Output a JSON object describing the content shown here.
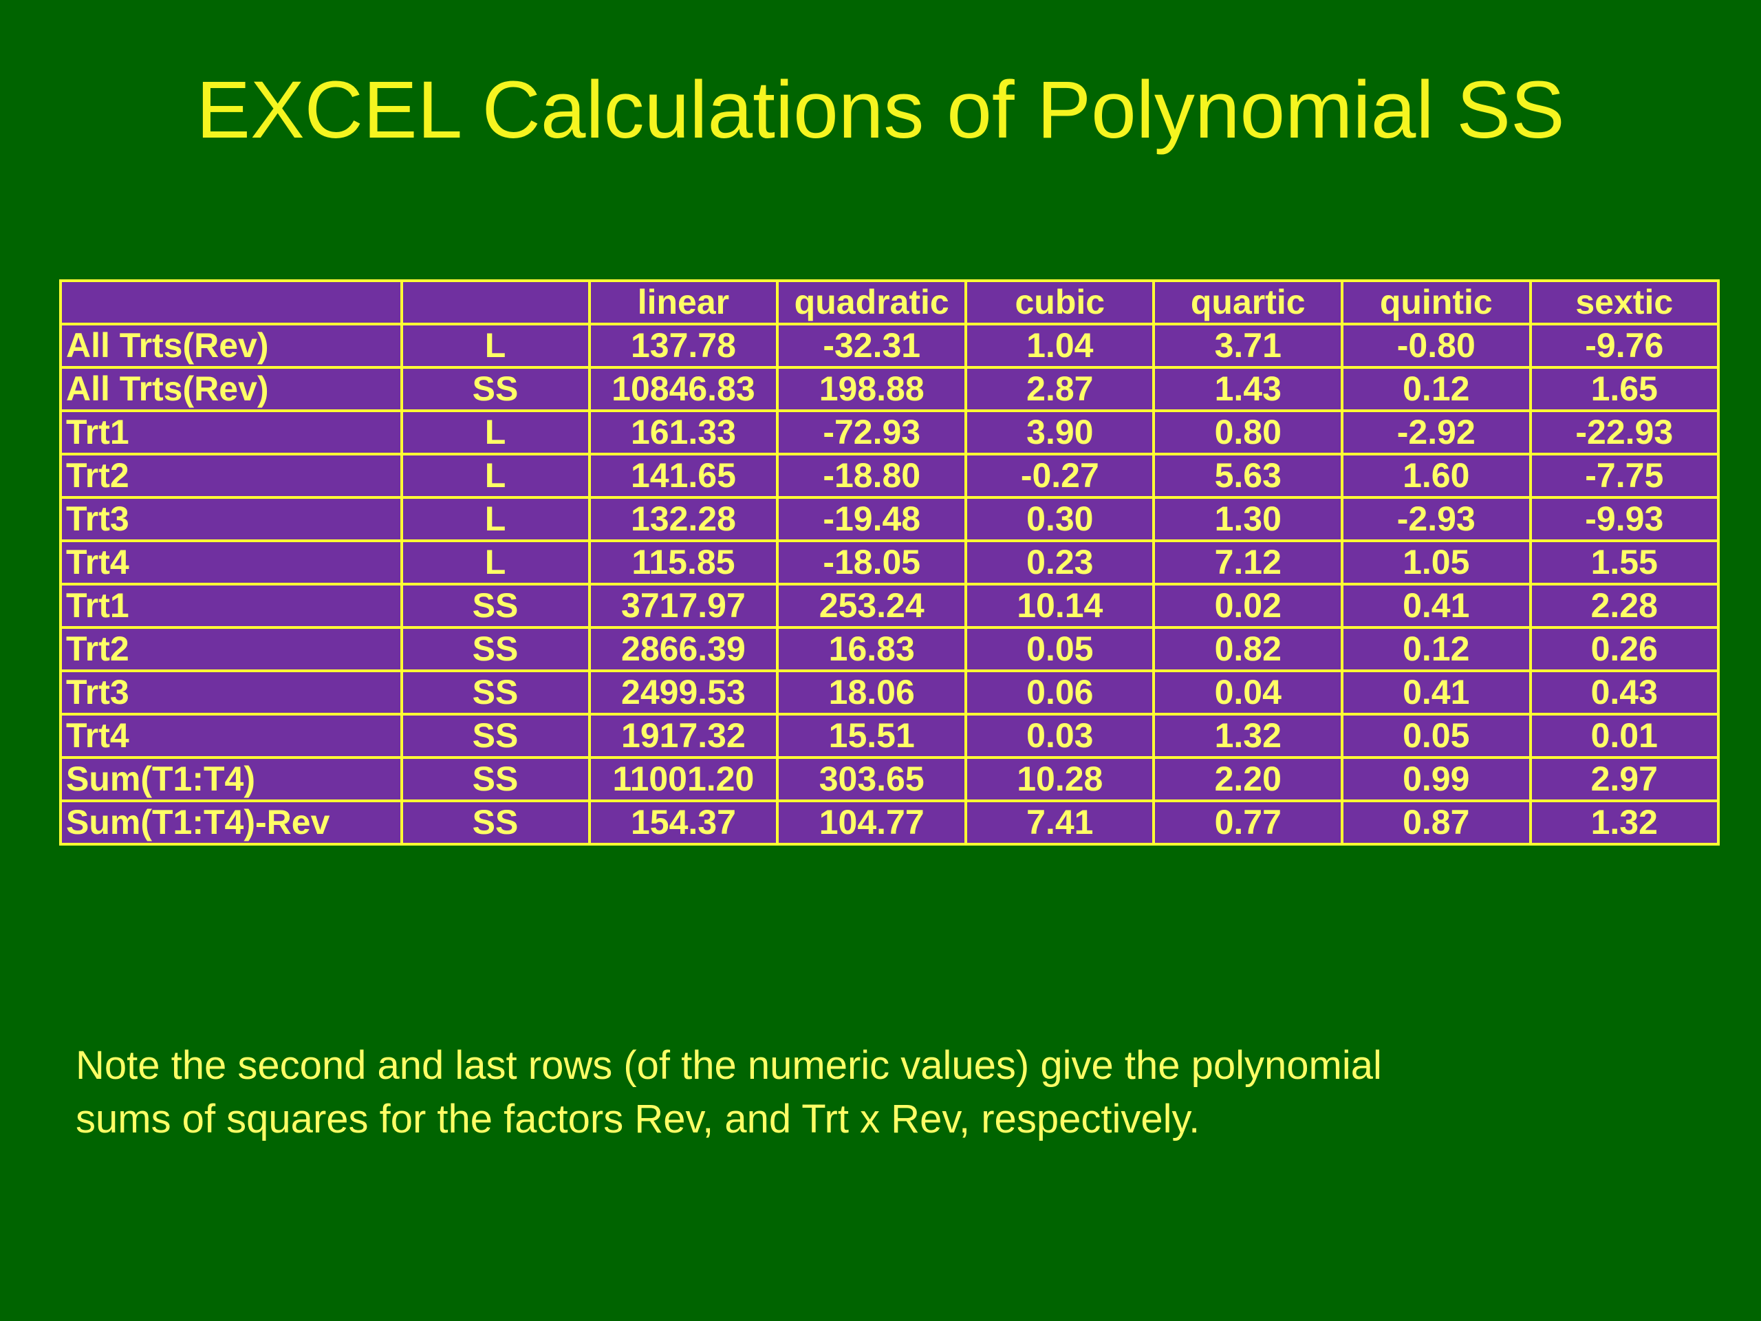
{
  "title": "EXCEL Calculations of Polynomial SS",
  "table": {
    "headers": [
      "",
      "",
      "linear",
      "quadratic",
      "cubic",
      "quartic",
      "quintic",
      "sextic"
    ],
    "rows": [
      [
        "All Trts(Rev)",
        "L",
        "137.78",
        "-32.31",
        "1.04",
        "3.71",
        "-0.80",
        "-9.76"
      ],
      [
        "All Trts(Rev)",
        "SS",
        "10846.83",
        "198.88",
        "2.87",
        "1.43",
        "0.12",
        "1.65"
      ],
      [
        "Trt1",
        "L",
        "161.33",
        "-72.93",
        "3.90",
        "0.80",
        "-2.92",
        "-22.93"
      ],
      [
        "Trt2",
        "L",
        "141.65",
        "-18.80",
        "-0.27",
        "5.63",
        "1.60",
        "-7.75"
      ],
      [
        "Trt3",
        "L",
        "132.28",
        "-19.48",
        "0.30",
        "1.30",
        "-2.93",
        "-9.93"
      ],
      [
        "Trt4",
        "L",
        "115.85",
        "-18.05",
        "0.23",
        "7.12",
        "1.05",
        "1.55"
      ],
      [
        "Trt1",
        "SS",
        "3717.97",
        "253.24",
        "10.14",
        "0.02",
        "0.41",
        "2.28"
      ],
      [
        "Trt2",
        "SS",
        "2866.39",
        "16.83",
        "0.05",
        "0.82",
        "0.12",
        "0.26"
      ],
      [
        "Trt3",
        "SS",
        "2499.53",
        "18.06",
        "0.06",
        "0.04",
        "0.41",
        "0.43"
      ],
      [
        "Trt4",
        "SS",
        "1917.32",
        "15.51",
        "0.03",
        "1.32",
        "0.05",
        "0.01"
      ],
      [
        "Sum(T1:T4)",
        "SS",
        "11001.20",
        "303.65",
        "10.28",
        "2.20",
        "0.99",
        "2.97"
      ],
      [
        "Sum(T1:T4)-Rev",
        "SS",
        "154.37",
        "104.77",
        "7.41",
        "0.77",
        "0.87",
        "1.32"
      ]
    ]
  },
  "note_line1": "Note the second and last rows (of the numeric values) give the polynomial",
  "note_line2": "sums of squares for the factors Rev, and Trt x Rev, respectively.",
  "colors": {
    "background": "#006400",
    "table_fill": "#7030a0",
    "text": "#ffff66",
    "title": "#f5f520"
  }
}
